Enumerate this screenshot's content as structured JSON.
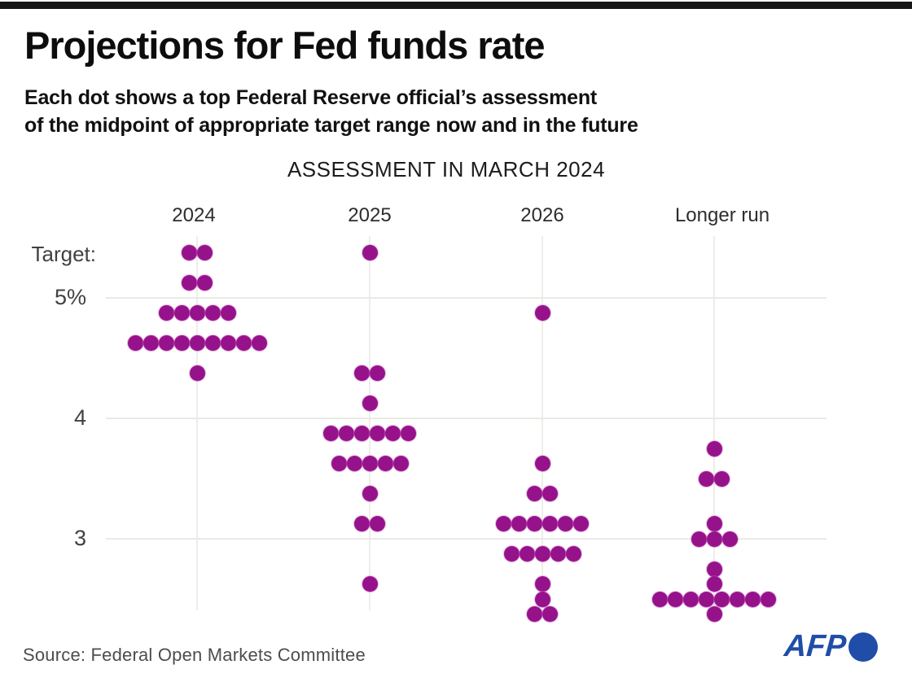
{
  "header": {
    "title": "Projections for Fed funds rate",
    "subtitle_line1": "Each dot shows a top Federal Reserve official’s assessment",
    "subtitle_line2": "of the midpoint of appropriate target range now and in the future"
  },
  "footer": {
    "source": "Source: Federal Open Markets Committee",
    "logo_text": "AFP"
  },
  "colors": {
    "dot": "#96128b",
    "afp_blue": "#1f4da8",
    "topbar": "#171717",
    "gridline": "#e9e9e6"
  },
  "chart_data": {
    "type": "scatter",
    "title": "ASSESSMENT IN MARCH 2024",
    "ylabel": "Target:",
    "y_axis": {
      "title": "Target:",
      "ticks": [
        {
          "label": "5%",
          "value": 5
        },
        {
          "label": "4",
          "value": 4
        },
        {
          "label": "3",
          "value": 3
        }
      ],
      "range": [
        2.25,
        5.5
      ],
      "grid": true
    },
    "columns": [
      {
        "label": "2024",
        "dots": [
          {
            "rate": 5.375,
            "count": 2
          },
          {
            "rate": 5.125,
            "count": 2
          },
          {
            "rate": 4.875,
            "count": 5
          },
          {
            "rate": 4.625,
            "count": 9
          },
          {
            "rate": 4.375,
            "count": 1
          }
        ]
      },
      {
        "label": "2025",
        "dots": [
          {
            "rate": 5.375,
            "count": 1
          },
          {
            "rate": 4.375,
            "count": 2
          },
          {
            "rate": 4.125,
            "count": 1
          },
          {
            "rate": 3.875,
            "count": 6
          },
          {
            "rate": 3.625,
            "count": 5
          },
          {
            "rate": 3.375,
            "count": 1
          },
          {
            "rate": 3.125,
            "count": 2
          },
          {
            "rate": 2.625,
            "count": 1
          }
        ]
      },
      {
        "label": "2026",
        "dots": [
          {
            "rate": 4.875,
            "count": 1
          },
          {
            "rate": 3.625,
            "count": 1
          },
          {
            "rate": 3.375,
            "count": 2
          },
          {
            "rate": 3.125,
            "count": 6
          },
          {
            "rate": 2.875,
            "count": 5
          },
          {
            "rate": 2.625,
            "count": 1
          },
          {
            "rate": 2.5,
            "count": 1
          },
          {
            "rate": 2.375,
            "count": 2
          }
        ]
      },
      {
        "label": "Longer run",
        "dots": [
          {
            "rate": 3.75,
            "count": 1
          },
          {
            "rate": 3.5,
            "count": 2
          },
          {
            "rate": 3.125,
            "count": 1
          },
          {
            "rate": 3.0,
            "count": 3
          },
          {
            "rate": 2.75,
            "count": 1
          },
          {
            "rate": 2.625,
            "count": 1
          },
          {
            "rate": 2.5,
            "count": 8
          },
          {
            "rate": 2.375,
            "count": 1
          }
        ]
      }
    ]
  }
}
